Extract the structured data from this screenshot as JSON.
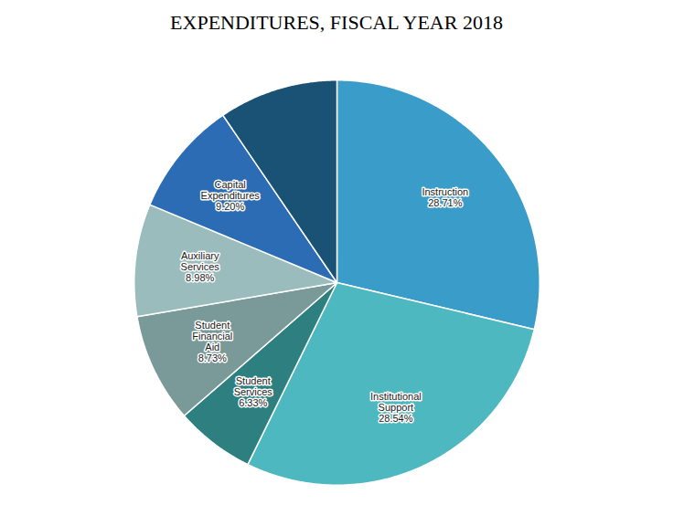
{
  "chart_data": {
    "type": "pie",
    "title": "EXPENDITURES, FISCAL YEAR 2018",
    "categories": [
      "Instruction",
      "Institutional\nSupport",
      "Student\nServices",
      "Student\nFinancial\nAid",
      "Auxiliary\nServices",
      "Capital\nExpenditures",
      null
    ],
    "values": [
      28.71,
      28.54,
      6.33,
      8.73,
      8.98,
      9.2,
      9.51
    ],
    "value_labels": [
      "28.71%",
      "28.54%",
      "6.33%",
      "8.73%",
      "8.98%",
      "9.20%",
      null
    ],
    "colors": [
      "#3a9cc8",
      "#4db8c0",
      "#2e7f7f",
      "#7a9a9a",
      "#9bbcbc",
      "#2b6cb5",
      "#1a5276"
    ],
    "data_labels": true
  }
}
